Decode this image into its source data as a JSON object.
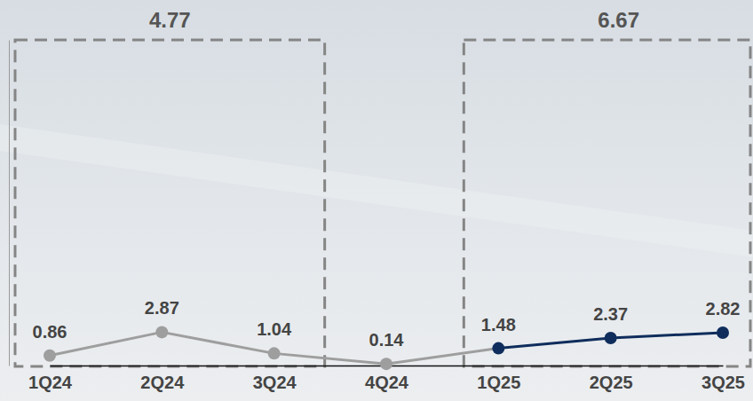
{
  "chart_data": {
    "type": "line",
    "categories": [
      "1Q24",
      "2Q24",
      "3Q24",
      "4Q24",
      "1Q25",
      "2Q25",
      "3Q25"
    ],
    "values": [
      0.86,
      2.87,
      1.04,
      0.14,
      1.48,
      2.37,
      2.82
    ],
    "colors": [
      "#9e9e9e",
      "#9e9e9e",
      "#9e9e9e",
      "#9e9e9e",
      "#0f2d5c",
      "#0f2d5c",
      "#0f2d5c"
    ],
    "ylim": [
      0,
      28
    ],
    "yticks": [],
    "grid": false,
    "data_labels": true,
    "tick_labels": "x",
    "marker": "circle",
    "line_style": "solid",
    "annotations": [
      {
        "text": "4.77",
        "from": "1Q24",
        "to": "3Q24"
      },
      {
        "text": "6.67",
        "from": "1Q25",
        "to": "3Q25"
      }
    ]
  }
}
